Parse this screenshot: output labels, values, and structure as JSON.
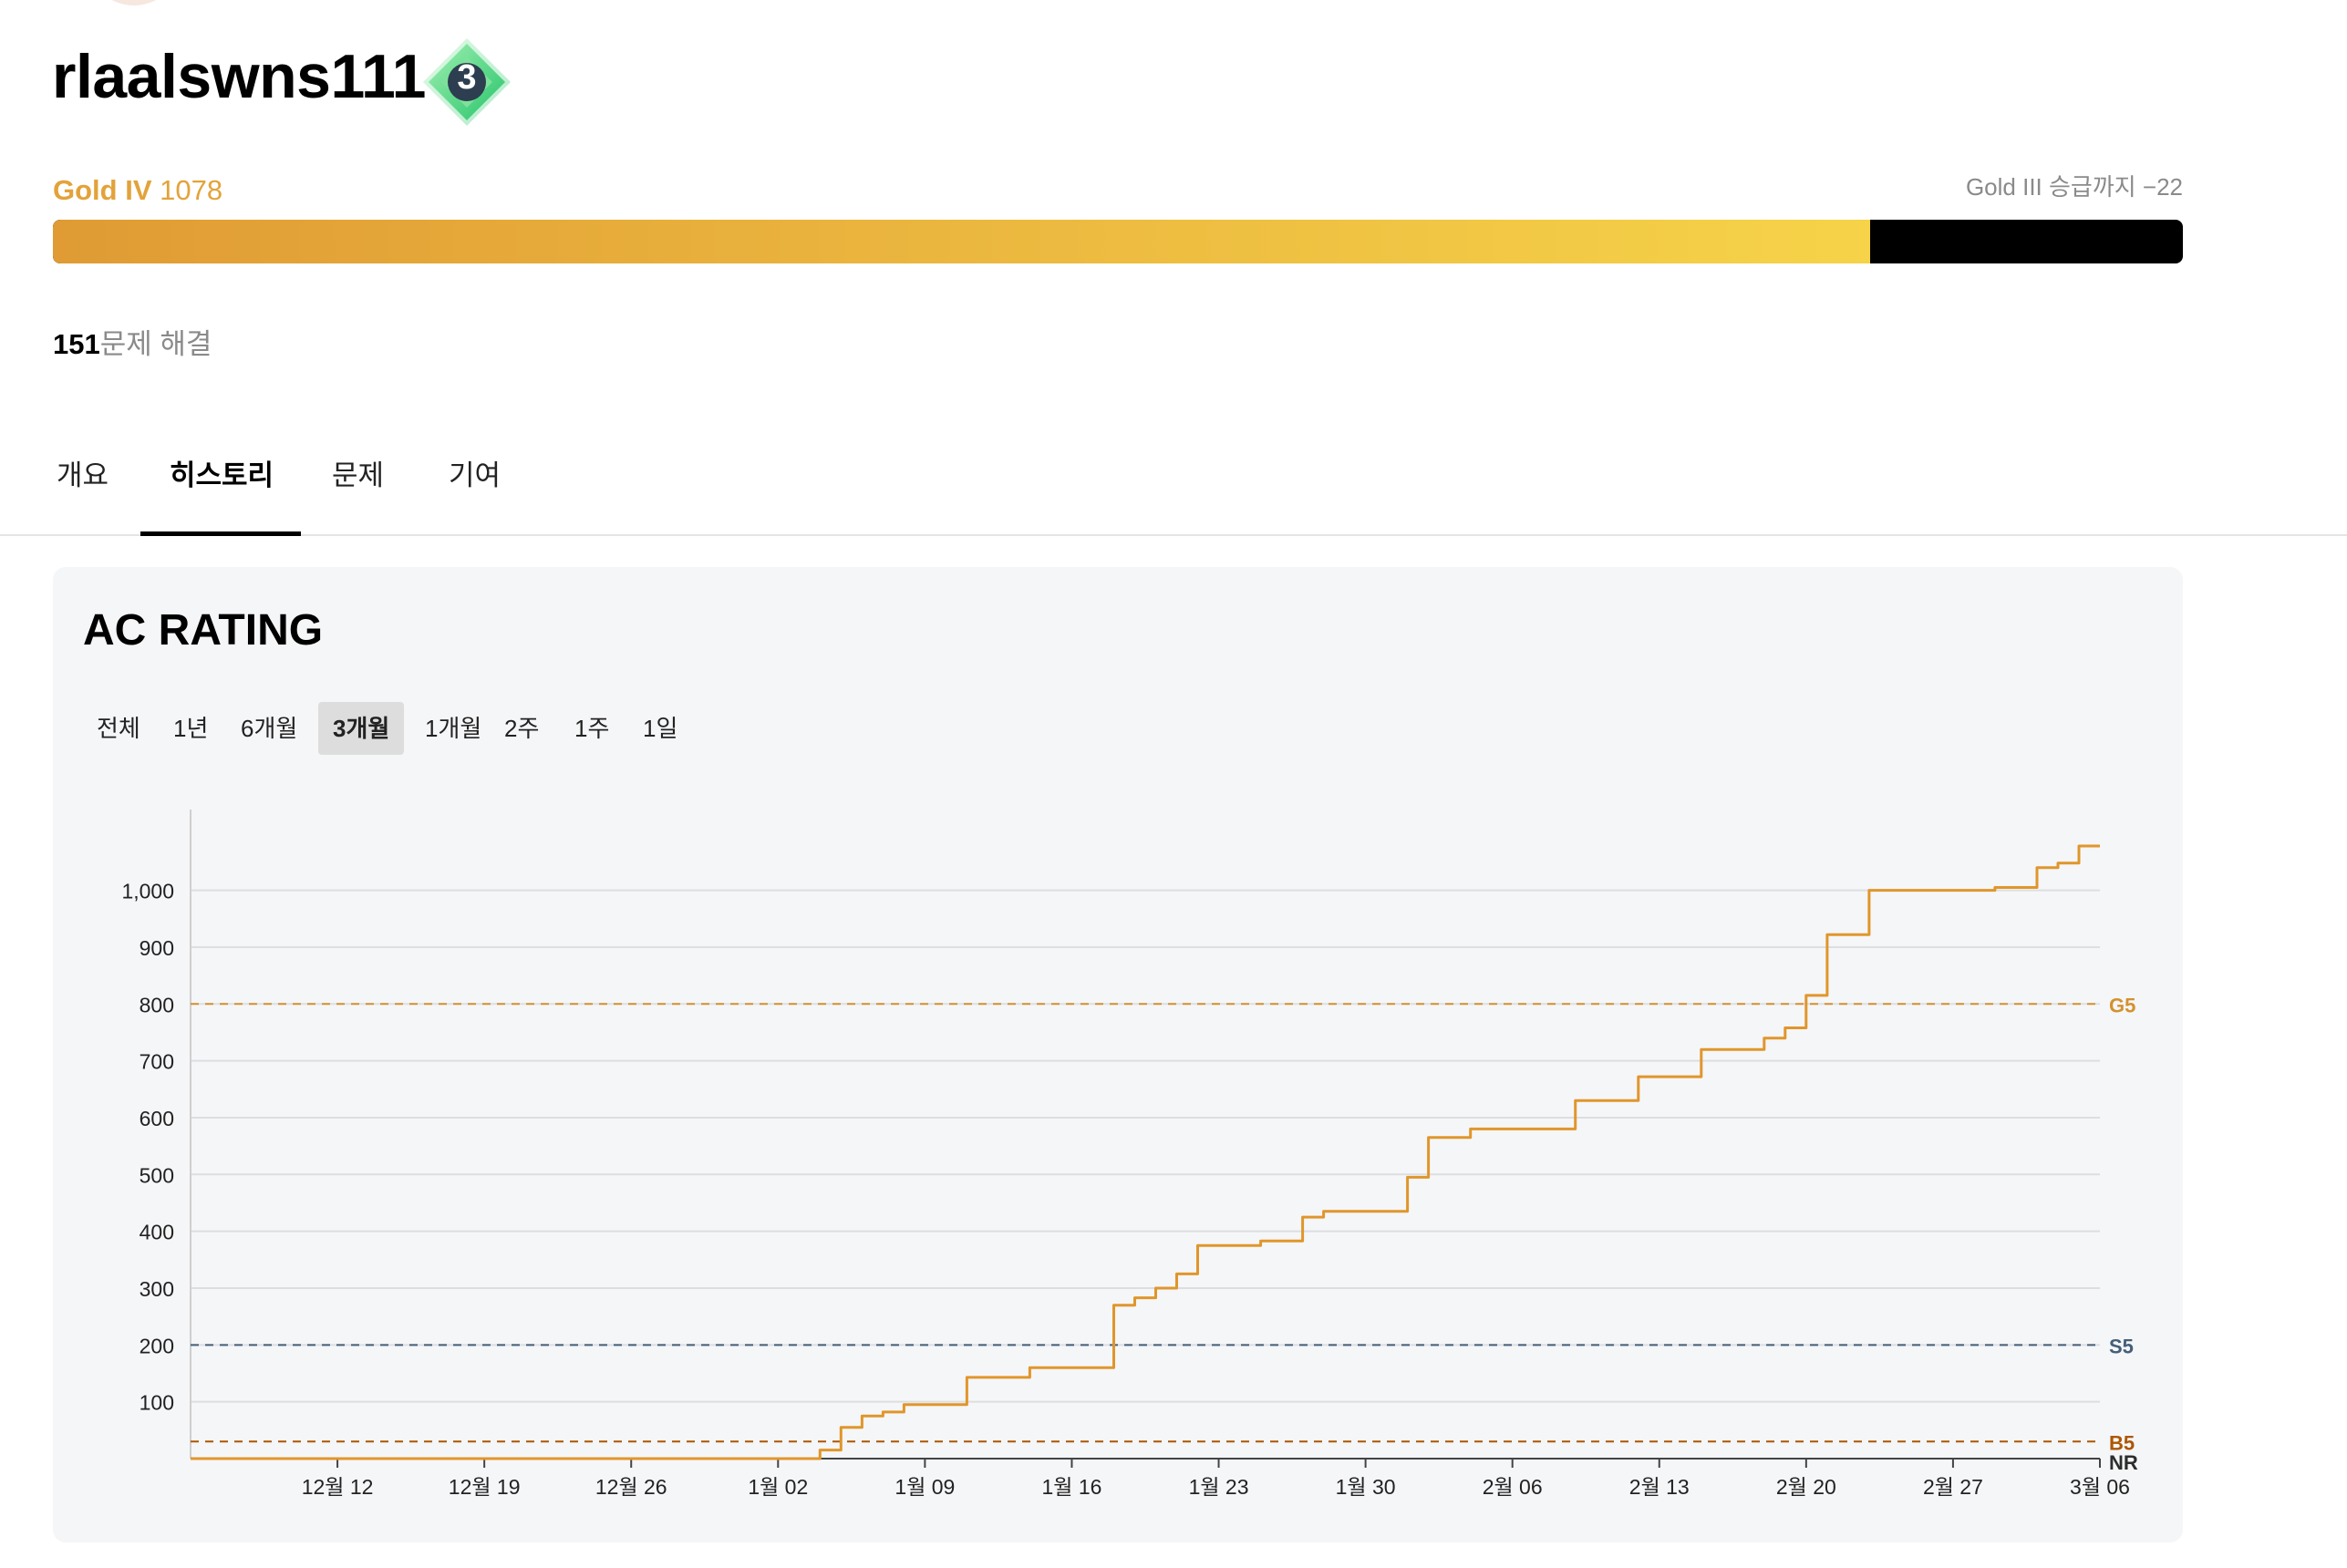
{
  "profile": {
    "username": "rlaalswns111",
    "tier_badge_number": "3",
    "tier_badge_color": "#5fd47f"
  },
  "rank": {
    "tier_name": "Gold IV",
    "rating": "1078",
    "next_tier_text": "Gold III 승급까지 −22",
    "progress_fraction": 0.853,
    "accent_color": "#e3a33a"
  },
  "solved": {
    "count": "151",
    "suffix": "문제 해결"
  },
  "tabs": [
    {
      "label": "개요",
      "active": false
    },
    {
      "label": "히스토리",
      "active": true
    },
    {
      "label": "문제",
      "active": false
    },
    {
      "label": "기여",
      "active": false
    }
  ],
  "rating_card": {
    "title": "AC RATING",
    "ranges": [
      {
        "label": "전체",
        "active": false
      },
      {
        "label": "1년",
        "active": false
      },
      {
        "label": "6개월",
        "active": false
      },
      {
        "label": "3개월",
        "active": true
      },
      {
        "label": "1개월",
        "active": false
      },
      {
        "label": "2주",
        "active": false
      },
      {
        "label": "1주",
        "active": false
      },
      {
        "label": "1일",
        "active": false
      }
    ]
  },
  "chart_data": {
    "type": "line",
    "title": "",
    "xlabel": "",
    "ylabel": "",
    "line_color": "#e0962b",
    "grid": true,
    "x_start": "2022-12-05",
    "x_end": "2023-03-06",
    "ylim": [
      0,
      1078
    ],
    "y_ticks": [
      {
        "value": 100,
        "label": "100"
      },
      {
        "value": 200,
        "label": "200"
      },
      {
        "value": 300,
        "label": "300"
      },
      {
        "value": 400,
        "label": "400"
      },
      {
        "value": 500,
        "label": "500"
      },
      {
        "value": 600,
        "label": "600"
      },
      {
        "value": 700,
        "label": "700"
      },
      {
        "value": 800,
        "label": "800"
      },
      {
        "value": 900,
        "label": "900"
      },
      {
        "value": 1000,
        "label": "1,000"
      }
    ],
    "x_ticks": [
      {
        "date": "2022-12-12",
        "label": "12월 12"
      },
      {
        "date": "2022-12-19",
        "label": "12월 19"
      },
      {
        "date": "2022-12-26",
        "label": "12월 26"
      },
      {
        "date": "2023-01-02",
        "label": "1월 02"
      },
      {
        "date": "2023-01-09",
        "label": "1월 09"
      },
      {
        "date": "2023-01-16",
        "label": "1월 16"
      },
      {
        "date": "2023-01-23",
        "label": "1월 23"
      },
      {
        "date": "2023-01-30",
        "label": "1월 30"
      },
      {
        "date": "2023-02-06",
        "label": "2월 06"
      },
      {
        "date": "2023-02-13",
        "label": "2월 13"
      },
      {
        "date": "2023-02-20",
        "label": "2월 20"
      },
      {
        "date": "2023-02-27",
        "label": "2월 27"
      },
      {
        "date": "2023-03-06",
        "label": "3월 06"
      }
    ],
    "thresholds": [
      {
        "label": "G5",
        "value": 800,
        "color": "#d4912e"
      },
      {
        "label": "S5",
        "value": 200,
        "color": "#435f7a"
      },
      {
        "label": "B5",
        "value": 30,
        "color": "#ad5600"
      },
      {
        "label": "NR",
        "value": 0,
        "color": "#2d2d2d"
      }
    ],
    "series": [
      {
        "points": [
          [
            "2022-12-05",
            0
          ],
          [
            "2023-01-04",
            0
          ],
          [
            "2023-01-04",
            8
          ],
          [
            "2023-01-04",
            15
          ],
          [
            "2023-01-05",
            15
          ],
          [
            "2023-01-05",
            28
          ],
          [
            "2023-01-05",
            45
          ],
          [
            "2023-01-05",
            55
          ],
          [
            "2023-01-06",
            55
          ],
          [
            "2023-01-06",
            70
          ],
          [
            "2023-01-06",
            75
          ],
          [
            "2023-01-07",
            75
          ],
          [
            "2023-01-07",
            82
          ],
          [
            "2023-01-08",
            82
          ],
          [
            "2023-01-08",
            95
          ],
          [
            "2023-01-11",
            95
          ],
          [
            "2023-01-11",
            143
          ],
          [
            "2023-01-14",
            143
          ],
          [
            "2023-01-14",
            160
          ],
          [
            "2023-01-18",
            160
          ],
          [
            "2023-01-18",
            200
          ],
          [
            "2023-01-18",
            240
          ],
          [
            "2023-01-18",
            255
          ],
          [
            "2023-01-18",
            270
          ],
          [
            "2023-01-19",
            270
          ],
          [
            "2023-01-19",
            283
          ],
          [
            "2023-01-20",
            283
          ],
          [
            "2023-01-20",
            300
          ],
          [
            "2023-01-21",
            300
          ],
          [
            "2023-01-21",
            315
          ],
          [
            "2023-01-21",
            325
          ],
          [
            "2023-01-22",
            325
          ],
          [
            "2023-01-22",
            365
          ],
          [
            "2023-01-22",
            375
          ],
          [
            "2023-01-25",
            375
          ],
          [
            "2023-01-25",
            383
          ],
          [
            "2023-01-27",
            383
          ],
          [
            "2023-01-27",
            410
          ],
          [
            "2023-01-27",
            425
          ],
          [
            "2023-01-28",
            425
          ],
          [
            "2023-01-28",
            435
          ],
          [
            "2023-02-01",
            435
          ],
          [
            "2023-02-01",
            480
          ],
          [
            "2023-02-01",
            490
          ],
          [
            "2023-02-01",
            495
          ],
          [
            "2023-02-02",
            495
          ],
          [
            "2023-02-02",
            530
          ],
          [
            "2023-02-02",
            565
          ],
          [
            "2023-02-04",
            565
          ],
          [
            "2023-02-04",
            575
          ],
          [
            "2023-02-04",
            580
          ],
          [
            "2023-02-09",
            580
          ],
          [
            "2023-02-09",
            630
          ],
          [
            "2023-02-12",
            630
          ],
          [
            "2023-02-12",
            672
          ],
          [
            "2023-02-15",
            672
          ],
          [
            "2023-02-15",
            700
          ],
          [
            "2023-02-15",
            720
          ],
          [
            "2023-02-18",
            720
          ],
          [
            "2023-02-18",
            740
          ],
          [
            "2023-02-19",
            740
          ],
          [
            "2023-02-19",
            758
          ],
          [
            "2023-02-20",
            758
          ],
          [
            "2023-02-20",
            795
          ],
          [
            "2023-02-20",
            815
          ],
          [
            "2023-02-21",
            815
          ],
          [
            "2023-02-21",
            840
          ],
          [
            "2023-02-21",
            855
          ],
          [
            "2023-02-21",
            880
          ],
          [
            "2023-02-21",
            905
          ],
          [
            "2023-02-21",
            922
          ],
          [
            "2023-02-22",
            922
          ],
          [
            "2023-02-23",
            922
          ],
          [
            "2023-02-23",
            940
          ],
          [
            "2023-02-23",
            1000
          ],
          [
            "2023-03-01",
            1000
          ],
          [
            "2023-03-01",
            1005
          ],
          [
            "2023-03-03",
            1005
          ],
          [
            "2023-03-03",
            1040
          ],
          [
            "2023-03-04",
            1040
          ],
          [
            "2023-03-04",
            1048
          ],
          [
            "2023-03-05",
            1048
          ],
          [
            "2023-03-05",
            1070
          ],
          [
            "2023-03-05",
            1078
          ],
          [
            "2023-03-06",
            1078
          ]
        ]
      }
    ]
  }
}
